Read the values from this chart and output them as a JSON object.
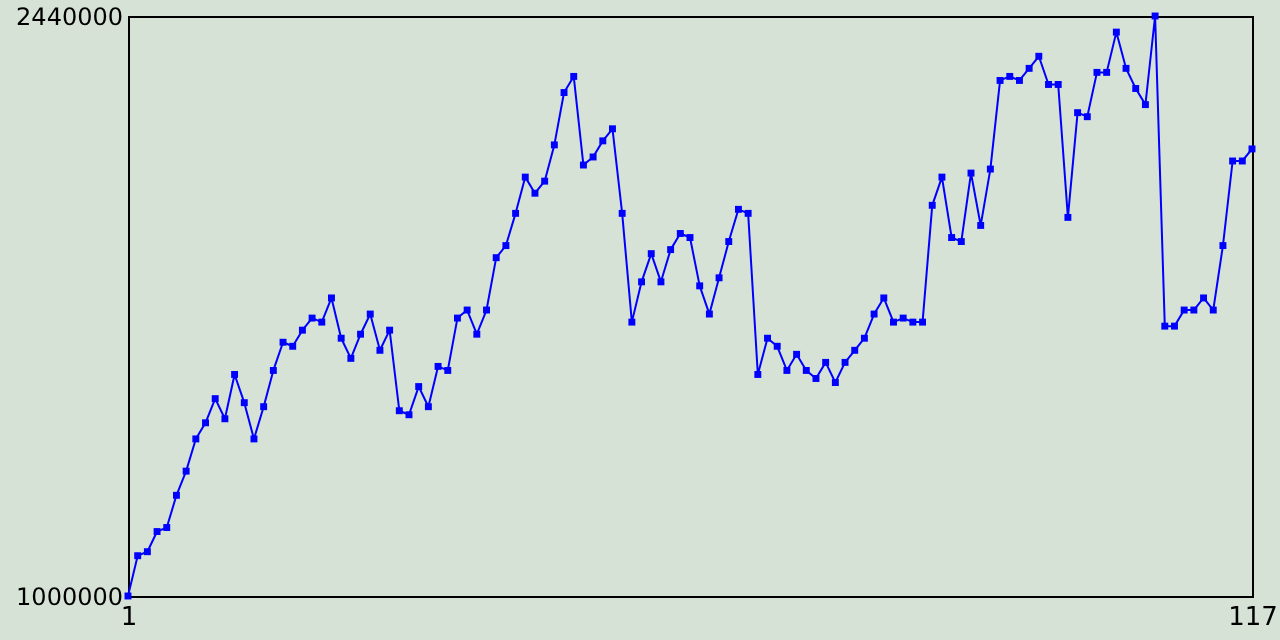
{
  "chart_data": {
    "type": "line",
    "x": [
      1,
      2,
      3,
      4,
      5,
      6,
      7,
      8,
      9,
      10,
      11,
      12,
      13,
      14,
      15,
      16,
      17,
      18,
      19,
      20,
      21,
      22,
      23,
      24,
      25,
      26,
      27,
      28,
      29,
      30,
      31,
      32,
      33,
      34,
      35,
      36,
      37,
      38,
      39,
      40,
      41,
      42,
      43,
      44,
      45,
      46,
      47,
      48,
      49,
      50,
      51,
      52,
      53,
      54,
      55,
      56,
      57,
      58,
      59,
      60,
      61,
      62,
      63,
      64,
      65,
      66,
      67,
      68,
      69,
      70,
      71,
      72,
      73,
      74,
      75,
      76,
      77,
      78,
      79,
      80,
      81,
      82,
      83,
      84,
      85,
      86,
      87,
      88,
      89,
      90,
      91,
      92,
      93,
      94,
      95,
      96,
      97,
      98,
      99,
      100,
      101,
      102,
      103,
      104,
      105,
      106,
      107,
      108,
      109,
      110,
      111,
      112,
      113,
      114,
      115,
      116,
      117
    ],
    "series": [
      {
        "color": "#0000ff",
        "values": [
          1000000,
          1100000,
          1110000,
          1160000,
          1170000,
          1250000,
          1310000,
          1390000,
          1430000,
          1490000,
          1440000,
          1550000,
          1480000,
          1390000,
          1470000,
          1560000,
          1630000,
          1620000,
          1660000,
          1690000,
          1680000,
          1740000,
          1640000,
          1590000,
          1650000,
          1700000,
          1610000,
          1660000,
          1460000,
          1450000,
          1520000,
          1470000,
          1570000,
          1560000,
          1690000,
          1710000,
          1650000,
          1710000,
          1840000,
          1870000,
          1950000,
          2040000,
          2000000,
          2030000,
          2120000,
          2250000,
          2290000,
          2070000,
          2090000,
          2130000,
          2160000,
          1950000,
          1680000,
          1780000,
          1850000,
          1780000,
          1860000,
          1900000,
          1890000,
          1770000,
          1700000,
          1790000,
          1880000,
          1960000,
          1950000,
          1550000,
          1640000,
          1620000,
          1560000,
          1600000,
          1560000,
          1540000,
          1580000,
          1530000,
          1580000,
          1610000,
          1640000,
          1700000,
          1740000,
          1680000,
          1690000,
          1680000,
          1680000,
          1970000,
          2040000,
          1890000,
          1880000,
          2050000,
          1920000,
          2060000,
          2280000,
          2290000,
          2280000,
          2310000,
          2340000,
          2270000,
          2270000,
          1940000,
          2200000,
          2190000,
          2300000,
          2300000,
          2400000,
          2310000,
          2260000,
          2220000,
          2440000,
          1670000,
          1670000,
          1710000,
          1710000,
          1740000,
          1710000,
          1870000,
          2080000,
          2080000,
          2110000
        ]
      }
    ],
    "xlim": [
      1,
      117
    ],
    "xticks": [
      1,
      117
    ],
    "ylim": [
      1000000,
      2440000
    ],
    "yticks": [
      1000000,
      2440000
    ],
    "marker": "square",
    "grid": false
  }
}
